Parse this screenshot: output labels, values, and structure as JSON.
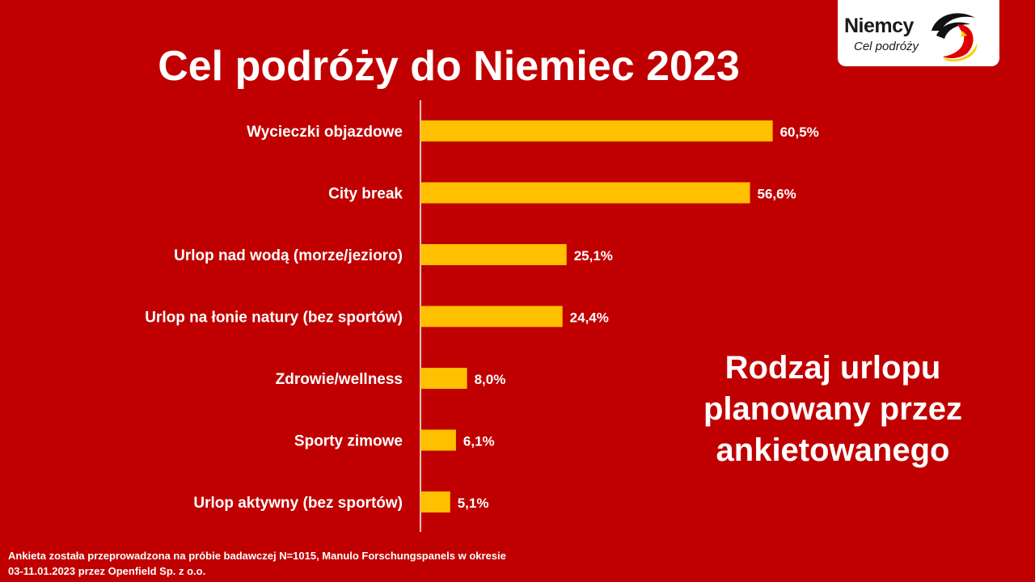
{
  "title": "Cel podróży do Niemiec 2023",
  "logo": {
    "name": "Niemcy",
    "subtitle": "Cel podróży",
    "colors": [
      "#000000",
      "#dd0000",
      "#ffcc00"
    ]
  },
  "side_note": [
    "Rodzaj urlopu",
    "planowany przez",
    "ankietowanego"
  ],
  "footnote": [
    "Ankieta została przeprowadzona na próbie badawczej N=1015,  Manulo Forschungspanels w okresie",
    "03-11.01.2023  przez Openfield Sp. z o.o."
  ],
  "colors": {
    "background": "#c00000",
    "bar": "#ffc000",
    "text": "#ffffff",
    "axis": "#ffffff"
  },
  "chart_data": {
    "type": "bar",
    "orientation": "horizontal",
    "categories": [
      "Wycieczki objazdowe",
      "City break",
      "Urlop nad wodą (morze/jezioro)",
      "Urlop na łonie natury (bez sportów)",
      "Zdrowie/wellness",
      "Sporty zimowe",
      "Urlop aktywny (bez sportów)"
    ],
    "values": [
      60.5,
      56.6,
      25.1,
      24.4,
      8.0,
      6.1,
      5.1
    ],
    "value_labels": [
      "60,5%",
      "56,6%",
      "25,1%",
      "24,4%",
      "8,0%",
      "6,1%",
      "5,1%"
    ],
    "unit": "%",
    "xlim": [
      0,
      100
    ],
    "grid": false,
    "legend": false
  }
}
